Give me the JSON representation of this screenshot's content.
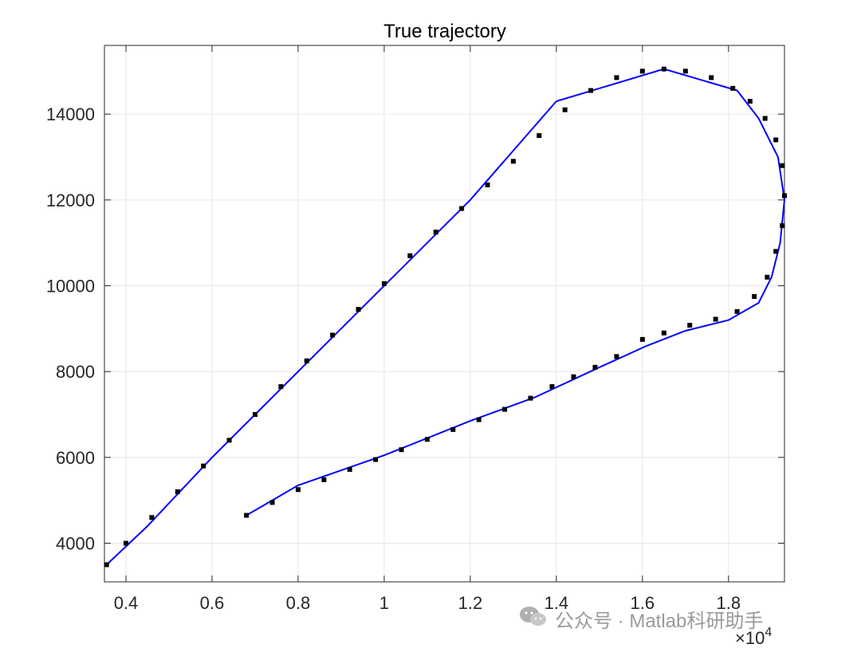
{
  "chart_data": {
    "type": "line",
    "title": "True trajectory",
    "xlabel": "",
    "ylabel": "",
    "xlim": [
      3500,
      19300
    ],
    "ylim": [
      3100,
      15600
    ],
    "x_exponent_label": "×10",
    "x_exponent_power": "4",
    "x_ticks": [
      4000,
      6000,
      8000,
      10000,
      12000,
      14000,
      16000,
      18000
    ],
    "x_tick_labels": [
      "0.4",
      "0.6",
      "0.8",
      "1",
      "1.2",
      "1.4",
      "1.6",
      "1.8"
    ],
    "y_ticks": [
      4000,
      6000,
      8000,
      10000,
      12000,
      14000
    ],
    "y_tick_labels": [
      "4000",
      "6000",
      "8000",
      "10000",
      "12000",
      "14000"
    ],
    "grid": true,
    "colors": {
      "true_line": "#0000ff",
      "markers": "#000000",
      "grid": "#e6e6e6",
      "axes": "#262626"
    },
    "series": [
      {
        "style": "line",
        "x": [
          6800,
          8000,
          10000,
          12000,
          13500,
          15000,
          16100,
          17000,
          18000,
          18700,
          19000,
          19200,
          19300,
          19150,
          18700,
          18200,
          16500,
          14000,
          12000,
          10000,
          8000,
          6000,
          4500,
          3550
        ],
        "y": [
          4650,
          5350,
          6050,
          6850,
          7400,
          8100,
          8600,
          8950,
          9200,
          9600,
          10200,
          11000,
          12000,
          13000,
          13900,
          14550,
          15050,
          14300,
          12000,
          10000,
          8000,
          6000,
          4400,
          3500
        ]
      },
      {
        "style": "markers",
        "x": [
          6800,
          7400,
          8000,
          8600,
          9200,
          9800,
          10400,
          11000,
          11600,
          12200,
          12800,
          13400,
          13900,
          14400,
          14900,
          15400,
          16000,
          16500,
          17100,
          17700,
          18200,
          18600,
          18900,
          19100,
          19250,
          19300,
          19250,
          19100,
          18850,
          18500,
          18100,
          17600,
          17000,
          16500,
          16000,
          15400,
          14800,
          14200,
          13600,
          13000,
          12400,
          11800,
          11200,
          10600,
          10000,
          9400,
          8800,
          8200,
          7600,
          7000,
          6400,
          5800,
          5200,
          4600,
          4000,
          3550
        ],
        "y": [
          4650,
          4950,
          5250,
          5480,
          5720,
          5950,
          6180,
          6420,
          6650,
          6880,
          7120,
          7380,
          7650,
          7880,
          8100,
          8350,
          8750,
          8900,
          9080,
          9220,
          9400,
          9750,
          10200,
          10800,
          11400,
          12100,
          12800,
          13400,
          13900,
          14300,
          14600,
          14850,
          15000,
          15050,
          15000,
          14850,
          14550,
          14100,
          13500,
          12900,
          12350,
          11800,
          11250,
          10700,
          10050,
          9450,
          8850,
          8250,
          7650,
          7000,
          6400,
          5800,
          5200,
          4600,
          4000,
          3500
        ]
      }
    ]
  },
  "watermark": {
    "text": "公众号 · Matlab科研助手"
  }
}
